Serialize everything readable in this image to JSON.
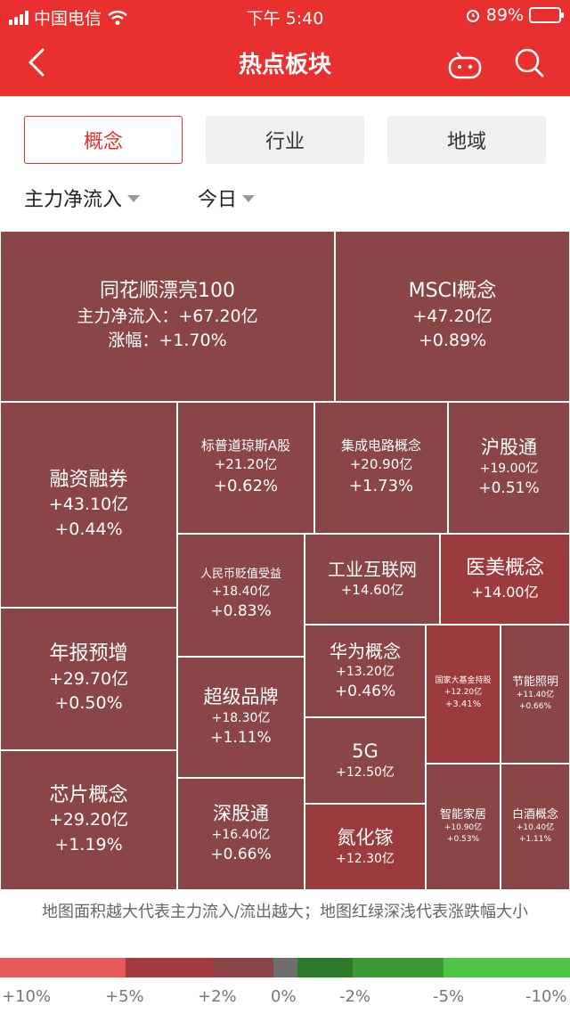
{
  "status": {
    "carrier": "中国电信",
    "time": "下午 5:40",
    "battery_pct": "89%"
  },
  "nav": {
    "title": "热点板块",
    "icons": [
      "back-arrow-icon",
      "robot-assistant-icon",
      "search-icon"
    ]
  },
  "tabs": [
    {
      "label": "概念",
      "active": true
    },
    {
      "label": "行业",
      "active": false
    },
    {
      "label": "地域",
      "active": false
    }
  ],
  "filters": {
    "metric": "主力净流入",
    "period": "今日"
  },
  "colors": {
    "header_red": "#e8312e",
    "tile": "#8a4647",
    "tile_strong": "#9c3b3d"
  },
  "tiles": [
    {
      "name": "同花顺漂亮100",
      "flow": "主力净流入：+67.20亿",
      "change": "涨幅：+1.70%"
    },
    {
      "name": "MSCI概念",
      "flow": "+47.20亿",
      "change": "+0.89%"
    },
    {
      "name": "融资融券",
      "flow": "+43.10亿",
      "change": "+0.44%"
    },
    {
      "name": "标普道琼斯A股",
      "flow": "+21.20亿",
      "change": "+0.62%"
    },
    {
      "name": "集成电路概念",
      "flow": "+20.90亿",
      "change": "+1.73%"
    },
    {
      "name": "沪股通",
      "flow": "+19.00亿",
      "change": "+0.51%"
    },
    {
      "name": "人民币贬值受益",
      "flow": "+18.40亿",
      "change": "+0.83%"
    },
    {
      "name": "工业互联网",
      "flow": "+14.60亿",
      "change": ""
    },
    {
      "name": "医美概念",
      "flow": "+14.00亿",
      "change": ""
    },
    {
      "name": "年报预增",
      "flow": "+29.70亿",
      "change": "+0.50%"
    },
    {
      "name": "华为概念",
      "flow": "+13.20亿",
      "change": "+0.46%"
    },
    {
      "name": "国家大基金持股",
      "flow": "+12.20亿",
      "change": "+3.41%"
    },
    {
      "name": "节能照明",
      "flow": "+11.40亿",
      "change": "+0.66%"
    },
    {
      "name": "超级品牌",
      "flow": "+18.30亿",
      "change": "+1.11%"
    },
    {
      "name": "5G",
      "flow": "+12.50亿",
      "change": ""
    },
    {
      "name": "芯片概念",
      "flow": "+29.20亿",
      "change": "+1.19%"
    },
    {
      "name": "深股通",
      "flow": "+16.40亿",
      "change": "+0.66%"
    },
    {
      "name": "氮化镓",
      "flow": "+12.30亿",
      "change": ""
    },
    {
      "name": "智能家居",
      "flow": "+10.90亿",
      "change": "+0.53%"
    },
    {
      "name": "白酒概念",
      "flow": "+10.40亿",
      "change": "+1.11%"
    }
  ],
  "caption": "地图面积越大代表主力流入/流出越大；地图红绿深浅代表涨跌幅大小",
  "legend": {
    "labels": [
      "+10%",
      "+5%",
      "+2%",
      "0%",
      "-2%",
      "-5%",
      "-10%"
    ],
    "colors": [
      "#e85a57",
      "#a43b3e",
      "#8a4647",
      "#6e6e6e",
      "#2d7a2a",
      "#3b9a36",
      "#4cc544"
    ]
  }
}
